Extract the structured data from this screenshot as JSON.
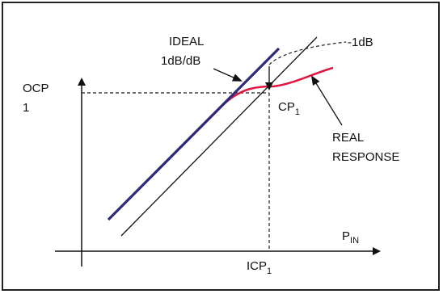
{
  "labels": {
    "ideal_line1": "IDEAL",
    "ideal_line2": "1dB/dB",
    "minus_1db": "-1dB",
    "ocp_line1": "OCP",
    "ocp_line2": "1",
    "cp_main": "CP",
    "cp_sub": "1",
    "real_line1": "REAL",
    "real_line2": "RESPONSE",
    "pin_main": "P",
    "pin_sub": "IN",
    "icp_main": "ICP",
    "icp_sub": "1"
  },
  "colors": {
    "ideal_line": "#2b2b7a",
    "real_response": "#e0143c",
    "axes": "#111111",
    "dashed": "#222222"
  }
}
